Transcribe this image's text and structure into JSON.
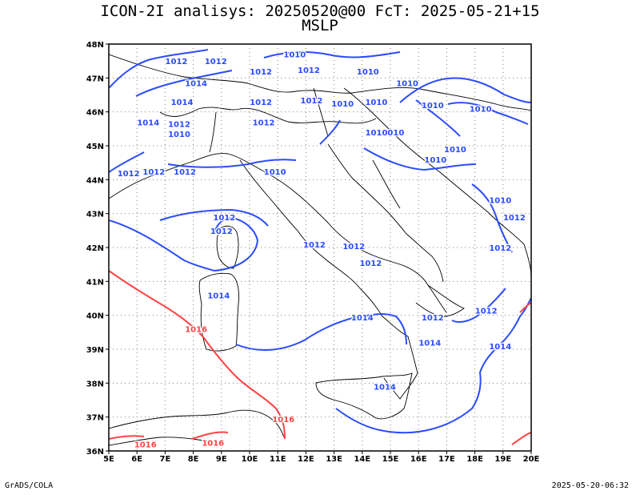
{
  "title_line1": "ICON-2I analisys: 20250520@00 FcT: 2025-05-21+15",
  "title_line2": "MSLP",
  "footer_left": "GrADS/COLA",
  "footer_right": "2025-05-20-06:32",
  "colors": {
    "isobar_low": "#2b4cff",
    "isobar_high": "#ff4444",
    "coast": "#000000",
    "grid": "#808080"
  },
  "map": {
    "lon_range": [
      5,
      20
    ],
    "lat_range": [
      36,
      48
    ],
    "lon_ticks": [
      "5E",
      "6E",
      "7E",
      "8E",
      "9E",
      "10E",
      "11E",
      "12E",
      "13E",
      "14E",
      "15E",
      "16E",
      "17E",
      "18E",
      "19E",
      "20E"
    ],
    "lat_ticks": [
      "36N",
      "37N",
      "38N",
      "39N",
      "40N",
      "41N",
      "42N",
      "43N",
      "44N",
      "45N",
      "46N",
      "47N",
      "48N"
    ],
    "isobar_labels": [
      {
        "text": "1010",
        "lon": 11.6,
        "lat": 47.7,
        "color": "blue"
      },
      {
        "text": "1012",
        "lon": 7.4,
        "lat": 47.5,
        "color": "blue"
      },
      {
        "text": "1012",
        "lon": 8.8,
        "lat": 47.5,
        "color": "blue"
      },
      {
        "text": "1012",
        "lon": 10.4,
        "lat": 47.2,
        "color": "blue"
      },
      {
        "text": "1012",
        "lon": 12.1,
        "lat": 47.25,
        "color": "blue"
      },
      {
        "text": "1010",
        "lon": 14.2,
        "lat": 47.2,
        "color": "blue"
      },
      {
        "text": "1014",
        "lon": 8.1,
        "lat": 46.85,
        "color": "blue"
      },
      {
        "text": "1010",
        "lon": 15.6,
        "lat": 46.85,
        "color": "blue"
      },
      {
        "text": "1010",
        "lon": 16.5,
        "lat": 46.2,
        "color": "blue"
      },
      {
        "text": "1010",
        "lon": 18.2,
        "lat": 46.1,
        "color": "blue"
      },
      {
        "text": "1014",
        "lon": 7.6,
        "lat": 46.3,
        "color": "blue"
      },
      {
        "text": "1012",
        "lon": 10.4,
        "lat": 46.3,
        "color": "blue"
      },
      {
        "text": "1012",
        "lon": 12.2,
        "lat": 46.35,
        "color": "blue"
      },
      {
        "text": "1010",
        "lon": 13.3,
        "lat": 46.25,
        "color": "blue"
      },
      {
        "text": "1010",
        "lon": 14.5,
        "lat": 46.3,
        "color": "blue"
      },
      {
        "text": "1012",
        "lon": 7.5,
        "lat": 45.65,
        "color": "blue"
      },
      {
        "text": "1014",
        "lon": 6.4,
        "lat": 45.7,
        "color": "blue"
      },
      {
        "text": "1010",
        "lon": 7.5,
        "lat": 45.35,
        "color": "blue"
      },
      {
        "text": "1012",
        "lon": 10.5,
        "lat": 45.7,
        "color": "blue"
      },
      {
        "text": "1010010",
        "lon": 14.8,
        "lat": 45.4,
        "color": "blue"
      },
      {
        "text": "1010",
        "lon": 16.6,
        "lat": 44.6,
        "color": "blue"
      },
      {
        "text": "1010",
        "lon": 17.3,
        "lat": 44.9,
        "color": "blue"
      },
      {
        "text": "1012",
        "lon": 5.7,
        "lat": 44.2,
        "color": "blue"
      },
      {
        "text": "1012",
        "lon": 6.6,
        "lat": 44.25,
        "color": "blue"
      },
      {
        "text": "1012",
        "lon": 7.7,
        "lat": 44.25,
        "color": "blue"
      },
      {
        "text": "1010",
        "lon": 10.9,
        "lat": 44.25,
        "color": "blue"
      },
      {
        "text": "1010",
        "lon": 18.9,
        "lat": 43.4,
        "color": "blue"
      },
      {
        "text": "1012",
        "lon": 19.4,
        "lat": 42.9,
        "color": "blue"
      },
      {
        "text": "1012",
        "lon": 9.1,
        "lat": 42.9,
        "color": "blue"
      },
      {
        "text": "1012",
        "lon": 18.9,
        "lat": 42.0,
        "color": "blue"
      },
      {
        "text": "1012",
        "lon": 9.0,
        "lat": 42.5,
        "color": "blue"
      },
      {
        "text": "1012",
        "lon": 12.3,
        "lat": 42.1,
        "color": "blue"
      },
      {
        "text": "1012",
        "lon": 13.7,
        "lat": 42.05,
        "color": "blue"
      },
      {
        "text": "1012",
        "lon": 14.3,
        "lat": 41.55,
        "color": "blue"
      },
      {
        "text": "1014",
        "lon": 8.9,
        "lat": 40.6,
        "color": "blue"
      },
      {
        "text": "1014",
        "lon": 14.0,
        "lat": 39.95,
        "color": "blue"
      },
      {
        "text": "1012",
        "lon": 16.5,
        "lat": 39.95,
        "color": "blue"
      },
      {
        "text": "1012",
        "lon": 18.4,
        "lat": 40.15,
        "color": "blue"
      },
      {
        "text": "1014",
        "lon": 16.4,
        "lat": 39.2,
        "color": "blue"
      },
      {
        "text": "1014",
        "lon": 18.9,
        "lat": 39.1,
        "color": "blue"
      },
      {
        "text": "1014",
        "lon": 14.8,
        "lat": 37.9,
        "color": "blue"
      },
      {
        "text": "1016",
        "lon": 8.1,
        "lat": 39.6,
        "color": "red"
      },
      {
        "text": "1016",
        "lon": 11.2,
        "lat": 36.95,
        "color": "red"
      },
      {
        "text": "1016",
        "lon": 6.3,
        "lat": 36.2,
        "color": "red"
      },
      {
        "text": "1016",
        "lon": 8.7,
        "lat": 36.25,
        "color": "red"
      }
    ]
  }
}
